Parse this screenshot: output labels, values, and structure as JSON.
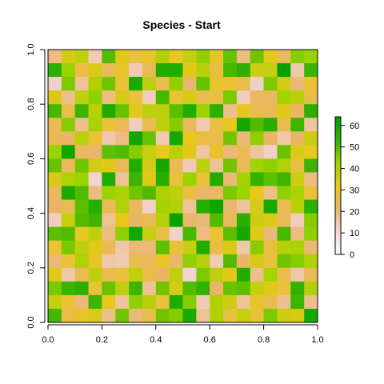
{
  "chart_data": {
    "type": "heatmap",
    "title": "Species - Start",
    "xlabel": "",
    "ylabel": "",
    "xlim": [
      0,
      1
    ],
    "ylim": [
      0,
      1
    ],
    "x_ticks": [
      "0.0",
      "0.2",
      "0.4",
      "0.6",
      "0.8",
      "1.0"
    ],
    "y_ticks": [
      "0.0",
      "0.2",
      "0.4",
      "0.6",
      "0.8",
      "1.0"
    ],
    "colorbar": {
      "ticks": [
        "0",
        "10",
        "20",
        "30",
        "40",
        "50",
        "60"
      ],
      "range": [
        0,
        64
      ],
      "palette": [
        "#ffffff",
        "#f2d4d4",
        "#eab56a",
        "#e8c81d",
        "#9ed400",
        "#2fb000",
        "#00a000"
      ]
    },
    "grid_size": [
      20,
      20
    ],
    "values": [
      [
        19,
        35,
        38,
        14,
        50,
        33,
        27,
        30,
        40,
        31,
        37,
        44,
        30,
        48,
        19,
        47,
        33,
        23,
        45,
        43
      ],
      [
        54,
        43,
        26,
        34,
        24,
        30,
        14,
        24,
        56,
        56,
        33,
        39,
        27,
        51,
        54,
        36,
        37,
        63,
        15,
        52
      ],
      [
        12,
        46,
        17,
        40,
        47,
        28,
        58,
        38,
        25,
        44,
        21,
        48,
        30,
        29,
        26,
        12,
        46,
        35,
        20,
        29
      ],
      [
        34,
        18,
        38,
        44,
        19,
        35,
        28,
        13,
        51,
        29,
        35,
        25,
        27,
        46,
        13,
        23,
        23,
        42,
        39,
        26
      ],
      [
        51,
        26,
        52,
        39,
        57,
        48,
        33,
        38,
        38,
        49,
        56,
        43,
        54,
        18,
        31,
        25,
        24,
        33,
        22,
        54
      ],
      [
        25,
        45,
        18,
        41,
        28,
        24,
        13,
        25,
        38,
        45,
        23,
        14,
        27,
        32,
        60,
        50,
        55,
        25,
        52,
        16
      ],
      [
        24,
        22,
        38,
        29,
        15,
        19,
        60,
        48,
        14,
        59,
        32,
        27,
        25,
        47,
        20,
        44,
        22,
        15,
        22,
        36
      ],
      [
        43,
        61,
        23,
        21,
        49,
        50,
        45,
        37,
        32,
        39,
        33,
        16,
        30,
        20,
        24,
        16,
        12,
        48,
        34,
        32
      ],
      [
        48,
        23,
        47,
        35,
        33,
        24,
        56,
        35,
        59,
        24,
        14,
        38,
        17,
        47,
        24,
        42,
        44,
        40,
        27,
        52
      ],
      [
        34,
        40,
        43,
        11,
        57,
        17,
        52,
        33,
        55,
        28,
        43,
        28,
        56,
        20,
        42,
        53,
        49,
        52,
        36,
        19
      ],
      [
        23,
        58,
        50,
        19,
        43,
        41,
        47,
        50,
        41,
        38,
        27,
        21,
        23,
        46,
        43,
        32,
        18,
        44,
        41,
        28
      ],
      [
        22,
        24,
        49,
        55,
        24,
        40,
        23,
        12,
        42,
        40,
        17,
        55,
        61,
        21,
        17,
        35,
        59,
        24,
        39,
        54
      ],
      [
        13,
        37,
        50,
        52,
        17,
        32,
        22,
        24,
        39,
        62,
        21,
        20,
        50,
        23,
        55,
        36,
        34,
        24,
        13,
        45
      ],
      [
        49,
        50,
        31,
        38,
        19,
        44,
        60,
        37,
        26,
        12,
        51,
        19,
        29,
        49,
        59,
        33,
        20,
        51,
        19,
        44
      ],
      [
        29,
        46,
        38,
        33,
        24,
        15,
        20,
        20,
        49,
        28,
        36,
        56,
        26,
        34,
        15,
        45,
        27,
        39,
        41,
        20
      ],
      [
        20,
        29,
        40,
        30,
        15,
        14,
        25,
        24,
        31,
        21,
        44,
        39,
        14,
        50,
        22,
        35,
        28,
        47,
        45,
        40
      ],
      [
        33,
        15,
        24,
        38,
        25,
        28,
        38,
        26,
        22,
        38,
        11,
        46,
        38,
        33,
        56,
        18,
        42,
        26,
        15,
        24
      ],
      [
        46,
        52,
        54,
        28,
        48,
        38,
        52,
        17,
        47,
        35,
        50,
        53,
        22,
        48,
        49,
        37,
        33,
        28,
        53,
        40
      ],
      [
        37,
        29,
        20,
        52,
        32,
        16,
        44,
        39,
        28,
        57,
        45,
        14,
        40,
        36,
        17,
        30,
        25,
        18,
        52,
        18
      ],
      [
        51,
        26,
        30,
        34,
        18,
        47,
        20,
        25,
        47,
        45,
        58,
        17,
        40,
        27,
        37,
        28,
        46,
        36,
        35,
        59
      ]
    ]
  }
}
